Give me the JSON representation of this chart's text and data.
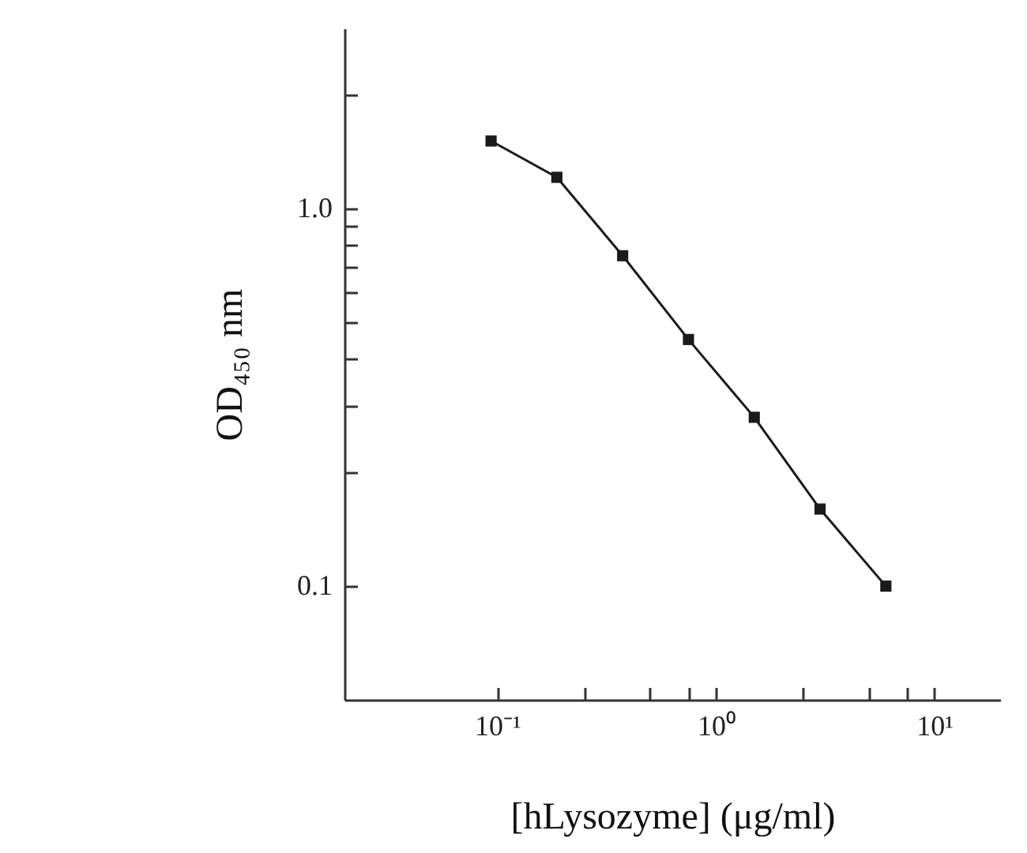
{
  "chart_data": {
    "type": "line",
    "xlabel": "[hLysozyme] (μg/ml)",
    "ylabel": "OD₄₅₀ nm",
    "x": [
      0.09375,
      0.1875,
      0.375,
      0.75,
      1.5,
      3,
      6
    ],
    "series": [
      {
        "color": "#1a1a1a",
        "values": [
          1.51,
          1.21,
          0.75,
          0.45,
          0.28,
          0.16,
          0.1
        ]
      }
    ],
    "log": "xy",
    "xlim": [
      0.02,
      20
    ],
    "ylim": [
      0.05,
      3
    ],
    "xticks": [
      {
        "value": 0.1,
        "label": "10⁻¹"
      },
      {
        "value": 0.25,
        "label": null
      },
      {
        "value": 0.5,
        "label": null
      },
      {
        "value": 0.75,
        "label": null
      },
      {
        "value": 1,
        "label": "10⁰"
      },
      {
        "value": 2.5,
        "label": null
      },
      {
        "value": 5,
        "label": null
      },
      {
        "value": 7.5,
        "label": null
      },
      {
        "value": 10,
        "label": "10¹"
      }
    ],
    "yticks": [
      {
        "value": 0.1,
        "label": "0.1"
      },
      {
        "value": 0.2,
        "label": null
      },
      {
        "value": 0.3,
        "label": null
      },
      {
        "value": 0.4,
        "label": null
      },
      {
        "value": 0.5,
        "label": null
      },
      {
        "value": 0.6,
        "label": null
      },
      {
        "value": 0.7,
        "label": null
      },
      {
        "value": 0.8,
        "label": null
      },
      {
        "value": 0.9,
        "label": null
      },
      {
        "value": 1,
        "label": "1.0"
      },
      {
        "value": 2,
        "label": null
      }
    ],
    "marker": "square",
    "line_style": "solid",
    "grid": false
  }
}
